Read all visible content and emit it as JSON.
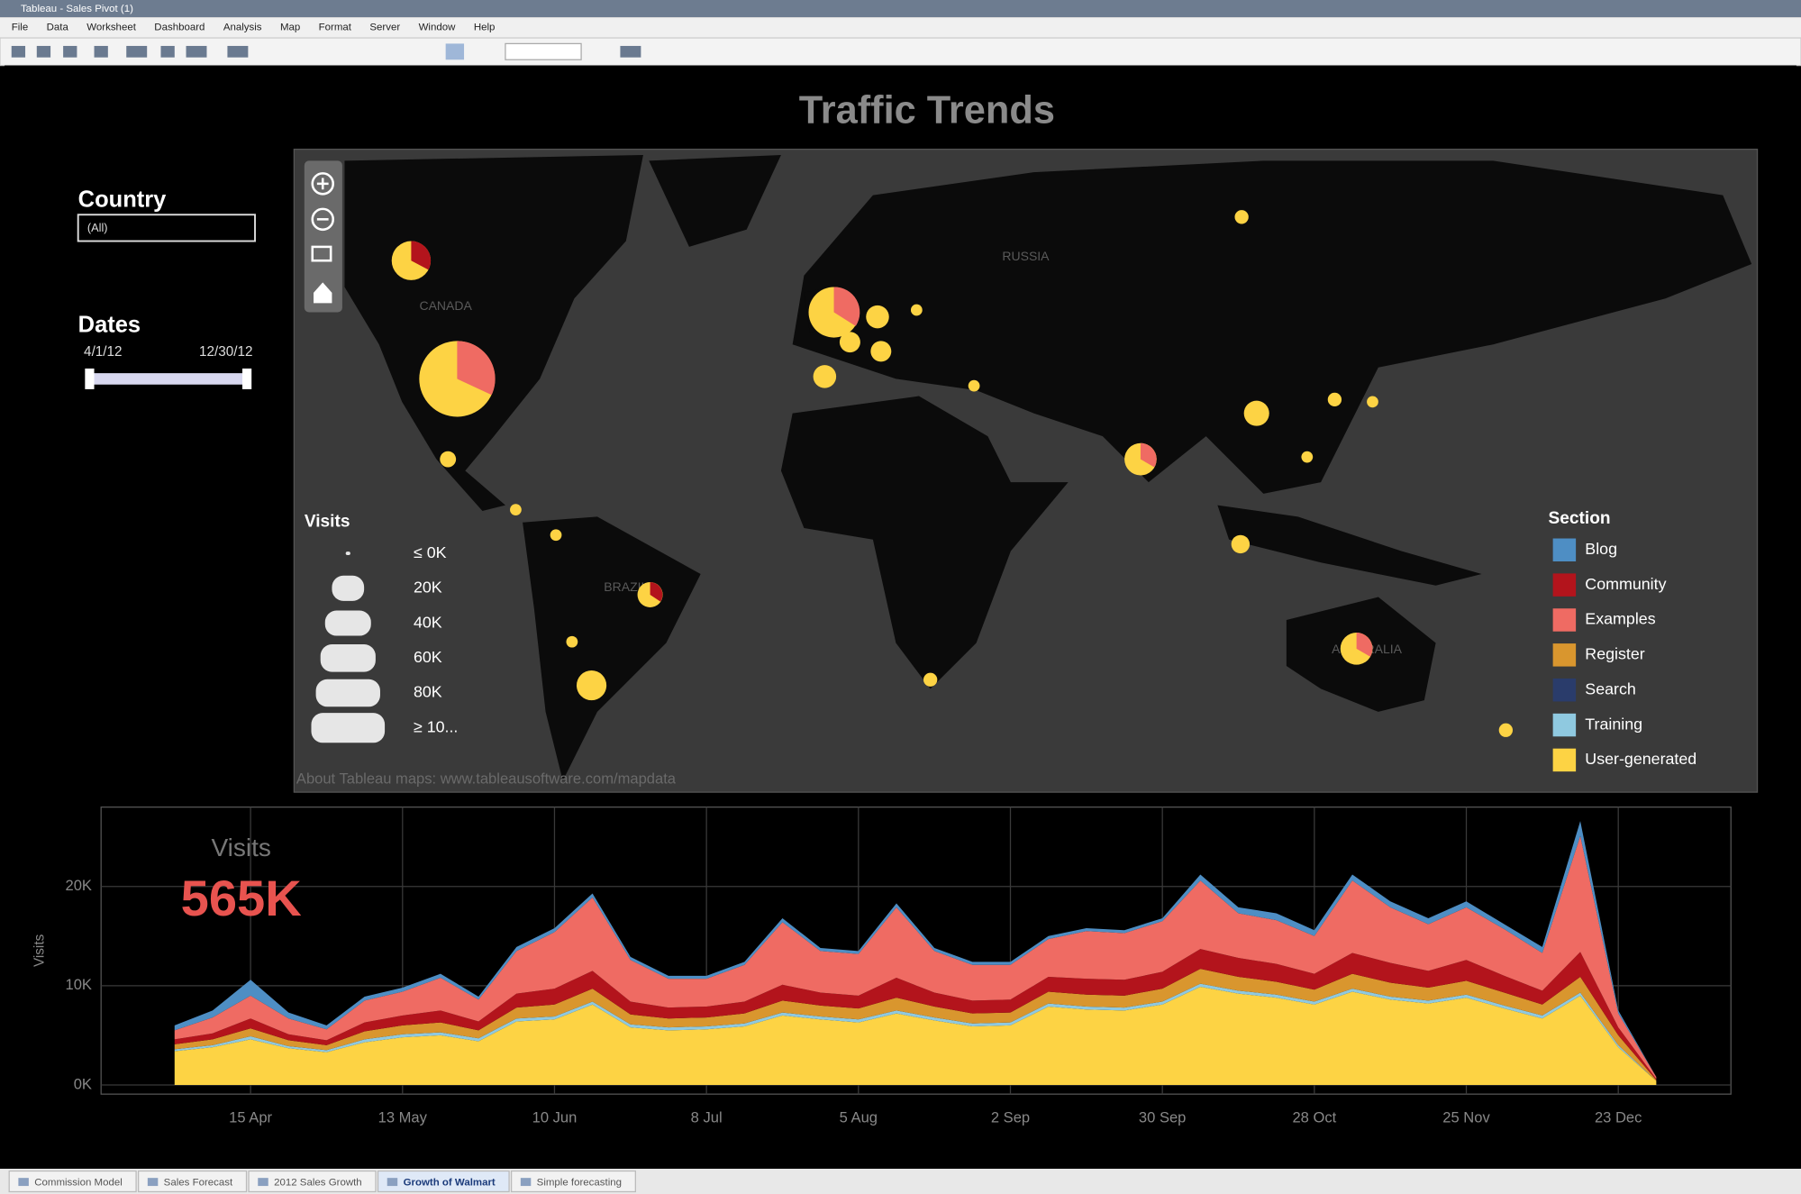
{
  "window": {
    "title": "Tableau - Sales Pivot (1)"
  },
  "menu": [
    "File",
    "Data",
    "Worksheet",
    "Dashboard",
    "Analysis",
    "Map",
    "Format",
    "Server",
    "Window",
    "Help"
  ],
  "dashboard": {
    "title": "Traffic Trends",
    "filters": {
      "country_label": "Country",
      "country_value": "(All)",
      "dates_label": "Dates",
      "date_start": "4/1/12",
      "date_end": "12/30/12"
    },
    "map": {
      "place_labels": [
        "CANADA",
        "RUSSIA",
        "BRAZIL",
        "AUSTRALIA"
      ],
      "credit": "About Tableau maps: www.tableausoftware.com/mapdata",
      "size_legend": {
        "title": "Visits",
        "labels": [
          "≤ 0K",
          "20K",
          "40K",
          "60K",
          "80K",
          "≥ 10..."
        ]
      },
      "color_legend": {
        "title": "Section",
        "items": [
          {
            "name": "Blog",
            "color": "#4e8ec4"
          },
          {
            "name": "Community",
            "color": "#b3141c"
          },
          {
            "name": "Examples",
            "color": "#ef6b63"
          },
          {
            "name": "Register",
            "color": "#d9962e"
          },
          {
            "name": "Search",
            "color": "#2a3c6b"
          },
          {
            "name": "Training",
            "color": "#8fc9e0"
          },
          {
            "name": "User-generated",
            "color": "#fdd344"
          }
        ]
      }
    }
  },
  "chart_data": {
    "type": "area",
    "stacked": true,
    "kpi_label": "Visits",
    "kpi_value": "565K",
    "y_label": "Visits",
    "x": [
      "1 Apr",
      "8 Apr",
      "15 Apr",
      "22 Apr",
      "29 Apr",
      "6 May",
      "13 May",
      "20 May",
      "27 May",
      "3 Jun",
      "10 Jun",
      "17 Jun",
      "24 Jun",
      "1 Jul",
      "8 Jul",
      "15 Jul",
      "22 Jul",
      "29 Jul",
      "5 Aug",
      "12 Aug",
      "19 Aug",
      "26 Aug",
      "2 Sep",
      "9 Sep",
      "16 Sep",
      "23 Sep",
      "30 Sep",
      "7 Oct",
      "14 Oct",
      "21 Oct",
      "28 Oct",
      "4 Nov",
      "11 Nov",
      "18 Nov",
      "25 Nov",
      "2 Dec",
      "9 Dec",
      "16 Dec",
      "23 Dec",
      "30 Dec"
    ],
    "xticks": [
      "15 Apr",
      "13 May",
      "10 Jun",
      "8 Jul",
      "5 Aug",
      "2 Sep",
      "30 Sep",
      "28 Oct",
      "25 Nov",
      "23 Dec"
    ],
    "ylim": [
      0,
      28000
    ],
    "yticks": [
      {
        "value": 0,
        "label": "0K"
      },
      {
        "value": 10000,
        "label": "10K"
      },
      {
        "value": 20000,
        "label": "20K"
      }
    ],
    "grid": true,
    "series": [
      {
        "name": "User-generated",
        "color": "#fdd344",
        "values": [
          3400,
          3800,
          4600,
          3700,
          3300,
          4300,
          4800,
          5000,
          4400,
          6400,
          6600,
          8100,
          5800,
          5500,
          5600,
          5900,
          7000,
          6600,
          6300,
          7200,
          6500,
          5900,
          6000,
          7900,
          7600,
          7500,
          8100,
          9900,
          9200,
          8800,
          8100,
          9400,
          8600,
          8200,
          8800,
          7700,
          6700,
          9000,
          3800,
          400
        ]
      },
      {
        "name": "Training",
        "color": "#8fc9e0",
        "values": [
          200,
          200,
          300,
          200,
          200,
          300,
          300,
          300,
          300,
          300,
          300,
          300,
          300,
          300,
          300,
          300,
          300,
          300,
          300,
          300,
          300,
          300,
          300,
          300,
          300,
          300,
          300,
          300,
          300,
          300,
          300,
          300,
          300,
          300,
          300,
          300,
          300,
          300,
          200,
          0
        ]
      },
      {
        "name": "Register",
        "color": "#d9962e",
        "values": [
          500,
          600,
          800,
          600,
          500,
          800,
          900,
          1000,
          800,
          1100,
          1200,
          1300,
          1000,
          900,
          900,
          1000,
          1200,
          1100,
          1100,
          1300,
          1100,
          1000,
          1000,
          1200,
          1200,
          1200,
          1300,
          1500,
          1400,
          1300,
          1200,
          1500,
          1400,
          1300,
          1400,
          1300,
          1100,
          1600,
          1000,
          100
        ]
      },
      {
        "name": "Community",
        "color": "#b3141c",
        "values": [
          500,
          600,
          1000,
          600,
          500,
          900,
          1000,
          1200,
          900,
          1400,
          1600,
          1800,
          1300,
          1100,
          1100,
          1200,
          1600,
          1300,
          1300,
          2000,
          1400,
          1300,
          1300,
          1500,
          1600,
          1600,
          1700,
          2000,
          1900,
          1800,
          1600,
          2100,
          2000,
          1700,
          2100,
          1700,
          1400,
          2500,
          800,
          100
        ]
      },
      {
        "name": "Examples",
        "color": "#ef6b63",
        "values": [
          900,
          1600,
          2300,
          1600,
          1100,
          2200,
          2400,
          3300,
          2200,
          4300,
          5700,
          7400,
          4200,
          2900,
          2800,
          3700,
          6300,
          4200,
          4200,
          7100,
          4200,
          3600,
          3500,
          3800,
          4800,
          4700,
          5100,
          6900,
          4500,
          4400,
          3800,
          7300,
          5600,
          4700,
          5300,
          4700,
          3800,
          11700,
          1400,
          200
        ]
      },
      {
        "name": "Blog",
        "color": "#4e8ec4",
        "values": [
          500,
          700,
          1600,
          600,
          400,
          400,
          400,
          400,
          300,
          400,
          400,
          400,
          300,
          300,
          300,
          300,
          400,
          300,
          300,
          400,
          300,
          300,
          300,
          300,
          300,
          300,
          300,
          600,
          600,
          700,
          600,
          600,
          600,
          600,
          600,
          500,
          600,
          1500,
          300,
          0
        ]
      }
    ]
  },
  "tabs": [
    "Commission Model",
    "Sales Forecast",
    "2012 Sales Growth",
    "Growth of Walmart",
    "Simple forecasting"
  ]
}
